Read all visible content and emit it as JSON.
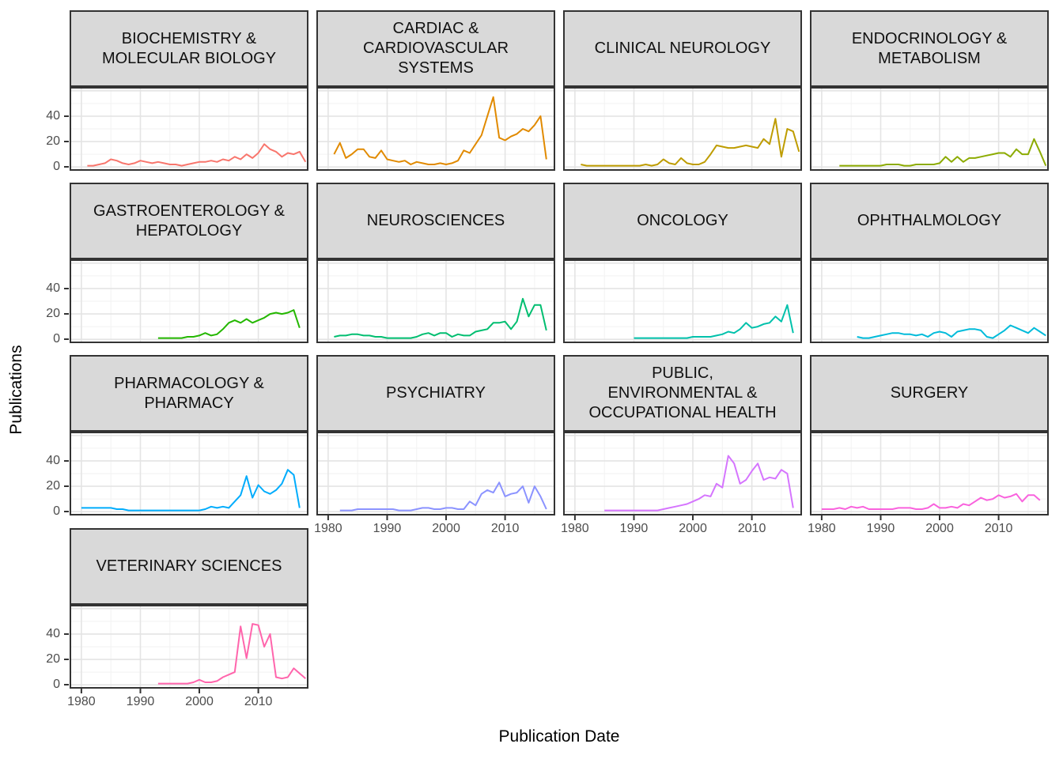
{
  "chart": {
    "x_label": "Publication Date",
    "y_label": "Publications",
    "x_ticks": [
      "1980",
      "1990",
      "2000",
      "2010"
    ],
    "y_ticks": [
      "0",
      "20",
      "40"
    ],
    "x_domain": [
      1978,
      2018.5
    ],
    "y_domain": [
      -3,
      63
    ],
    "grid": {
      "major_years": [
        1980,
        1990,
        2000,
        2010
      ],
      "minor_years": [
        1985,
        1995,
        2005,
        2015
      ],
      "major_values": [
        0,
        20,
        40,
        60
      ],
      "minor_values": [
        10,
        30,
        50
      ]
    }
  },
  "style": {
    "strip_fill": "#D9D9D9",
    "border": "#333333",
    "grid_major": "#E4E4E4",
    "grid_minor": "#F2F2F2",
    "tick_text": "#4D4D4D",
    "tick_mark": "#333333",
    "panel_bg": "#FFFFFF"
  },
  "chart_data": {
    "type": "line",
    "title": "",
    "xlabel": "Publication Date",
    "ylabel": "Publications",
    "x_tick_labels": [
      "1980",
      "1990",
      "2000",
      "2010"
    ],
    "y_tick_labels": [
      "0",
      "20",
      "40"
    ],
    "facets": [
      {
        "label": "BIOCHEMISTRY & MOLECULAR BIOLOGY",
        "strip_lines": [
          "BIOCHEMISTRY &",
          "MOLECULAR BIOLOGY"
        ],
        "color": "#F8766D",
        "start_year": 1981,
        "values": [
          1,
          1,
          2,
          3,
          6,
          5,
          3,
          2,
          3,
          5,
          4,
          3,
          4,
          3,
          2,
          2,
          1,
          2,
          3,
          4,
          4,
          5,
          4,
          6,
          5,
          8,
          6,
          10,
          7,
          11,
          18,
          14,
          12,
          8,
          11,
          10,
          12,
          4
        ]
      },
      {
        "label": "CARDIAC & CARDIOVASCULAR SYSTEMS",
        "strip_lines": [
          "CARDIAC &",
          "CARDIOVASCULAR",
          "SYSTEMS"
        ],
        "color": "#E18A00",
        "start_year": 1981,
        "values": [
          10,
          19,
          7,
          10,
          14,
          14,
          8,
          7,
          13,
          6,
          5,
          4,
          5,
          2,
          4,
          3,
          2,
          2,
          3,
          2,
          3,
          5,
          13,
          11,
          18,
          25,
          40,
          55,
          23,
          21,
          24,
          26,
          30,
          28,
          33,
          40,
          6
        ]
      },
      {
        "label": "CLINICAL NEUROLOGY",
        "strip_lines": [
          "CLINICAL NEUROLOGY"
        ],
        "color": "#BE9C00",
        "start_year": 1981,
        "values": [
          2,
          1,
          1,
          1,
          1,
          1,
          1,
          1,
          1,
          1,
          1,
          2,
          1,
          2,
          6,
          3,
          2,
          7,
          3,
          2,
          2,
          4,
          10,
          17,
          16,
          15,
          15,
          16,
          17,
          16,
          15,
          22,
          18,
          38,
          8,
          30,
          28,
          12
        ]
      },
      {
        "label": "ENDOCRINOLOGY & METABOLISM",
        "strip_lines": [
          "ENDOCRINOLOGY &",
          "METABOLISM"
        ],
        "color": "#8CAB00",
        "start_year": 1983,
        "values": [
          1,
          1,
          1,
          1,
          1,
          1,
          1,
          1,
          2,
          2,
          2,
          1,
          1,
          2,
          2,
          2,
          2,
          3,
          8,
          4,
          8,
          4,
          7,
          7,
          8,
          9,
          10,
          11,
          11,
          8,
          14,
          10,
          10,
          22,
          12,
          1
        ]
      },
      {
        "label": "GASTROENTEROLOGY & HEPATOLOGY",
        "strip_lines": [
          "GASTROENTEROLOGY &",
          "HEPATOLOGY"
        ],
        "color": "#24B700",
        "start_year": 1993,
        "values": [
          1,
          1,
          1,
          1,
          1,
          2,
          2,
          3,
          5,
          3,
          4,
          8,
          13,
          15,
          13,
          16,
          13,
          15,
          17,
          20,
          21,
          20,
          21,
          23,
          9
        ]
      },
      {
        "label": "NEUROSCIENCES",
        "strip_lines": [
          "NEUROSCIENCES"
        ],
        "color": "#00BE70",
        "start_year": 1981,
        "values": [
          2,
          3,
          3,
          4,
          4,
          3,
          3,
          2,
          2,
          1,
          1,
          1,
          1,
          1,
          2,
          4,
          5,
          3,
          5,
          5,
          2,
          4,
          3,
          3,
          6,
          7,
          8,
          13,
          13,
          14,
          8,
          14,
          32,
          18,
          27,
          27,
          7
        ]
      },
      {
        "label": "ONCOLOGY",
        "strip_lines": [
          "ONCOLOGY"
        ],
        "color": "#00C1AB",
        "start_year": 1990,
        "values": [
          1,
          1,
          1,
          1,
          1,
          1,
          1,
          1,
          1,
          1,
          2,
          2,
          2,
          2,
          3,
          4,
          6,
          5,
          8,
          13,
          9,
          10,
          12,
          13,
          18,
          14,
          27,
          5
        ]
      },
      {
        "label": "OPHTHALMOLOGY",
        "strip_lines": [
          "OPHTHALMOLOGY"
        ],
        "color": "#00BBDA",
        "start_year": 1986,
        "values": [
          2,
          1,
          1,
          2,
          3,
          4,
          5,
          5,
          4,
          4,
          3,
          4,
          2,
          5,
          6,
          5,
          2,
          6,
          7,
          8,
          8,
          7,
          2,
          1,
          4,
          7,
          11,
          9,
          7,
          5,
          9,
          6,
          3
        ]
      },
      {
        "label": "PHARMACOLOGY & PHARMACY",
        "strip_lines": [
          "PHARMACOLOGY &",
          "PHARMACY"
        ],
        "color": "#00ACFC",
        "start_year": 1980,
        "values": [
          3,
          3,
          3,
          3,
          3,
          3,
          2,
          2,
          1,
          1,
          1,
          1,
          1,
          1,
          1,
          1,
          1,
          1,
          1,
          1,
          1,
          2,
          4,
          3,
          4,
          3,
          8,
          13,
          28,
          11,
          21,
          16,
          14,
          17,
          22,
          33,
          29,
          3
        ]
      },
      {
        "label": "PSYCHIATRY",
        "strip_lines": [
          "PSYCHIATRY"
        ],
        "color": "#8B93FF",
        "start_year": 1982,
        "values": [
          1,
          1,
          1,
          2,
          2,
          2,
          2,
          2,
          2,
          2,
          1,
          1,
          1,
          2,
          3,
          3,
          2,
          2,
          3,
          3,
          2,
          2,
          8,
          5,
          14,
          17,
          15,
          23,
          12,
          14,
          15,
          20,
          7,
          20,
          12,
          2
        ]
      },
      {
        "label": "PUBLIC, ENVIRONMENTAL & OCCUPATIONAL HEALTH",
        "strip_lines": [
          "PUBLIC,",
          "ENVIRONMENTAL &",
          "OCCUPATIONAL HEALTH"
        ],
        "color": "#D575FE",
        "start_year": 1985,
        "values": [
          1,
          1,
          1,
          1,
          1,
          1,
          1,
          1,
          1,
          1,
          2,
          3,
          4,
          5,
          6,
          8,
          10,
          13,
          12,
          22,
          19,
          44,
          38,
          22,
          25,
          32,
          38,
          25,
          27,
          26,
          33,
          30,
          3
        ]
      },
      {
        "label": "SURGERY",
        "strip_lines": [
          "SURGERY"
        ],
        "color": "#F962DD",
        "start_year": 1980,
        "values": [
          2,
          2,
          2,
          3,
          2,
          4,
          3,
          4,
          2,
          2,
          2,
          2,
          2,
          3,
          3,
          3,
          2,
          2,
          3,
          6,
          3,
          3,
          4,
          3,
          6,
          5,
          8,
          11,
          9,
          10,
          13,
          11,
          12,
          14,
          8,
          13,
          13,
          9
        ]
      },
      {
        "label": "VETERINARY SCIENCES",
        "strip_lines": [
          "VETERINARY SCIENCES"
        ],
        "color": "#FF65AC",
        "start_year": 1993,
        "values": [
          1,
          1,
          1,
          1,
          1,
          1,
          2,
          4,
          2,
          2,
          3,
          6,
          8,
          10,
          46,
          21,
          48,
          47,
          30,
          40,
          6,
          5,
          6,
          13,
          9,
          5
        ]
      }
    ]
  }
}
